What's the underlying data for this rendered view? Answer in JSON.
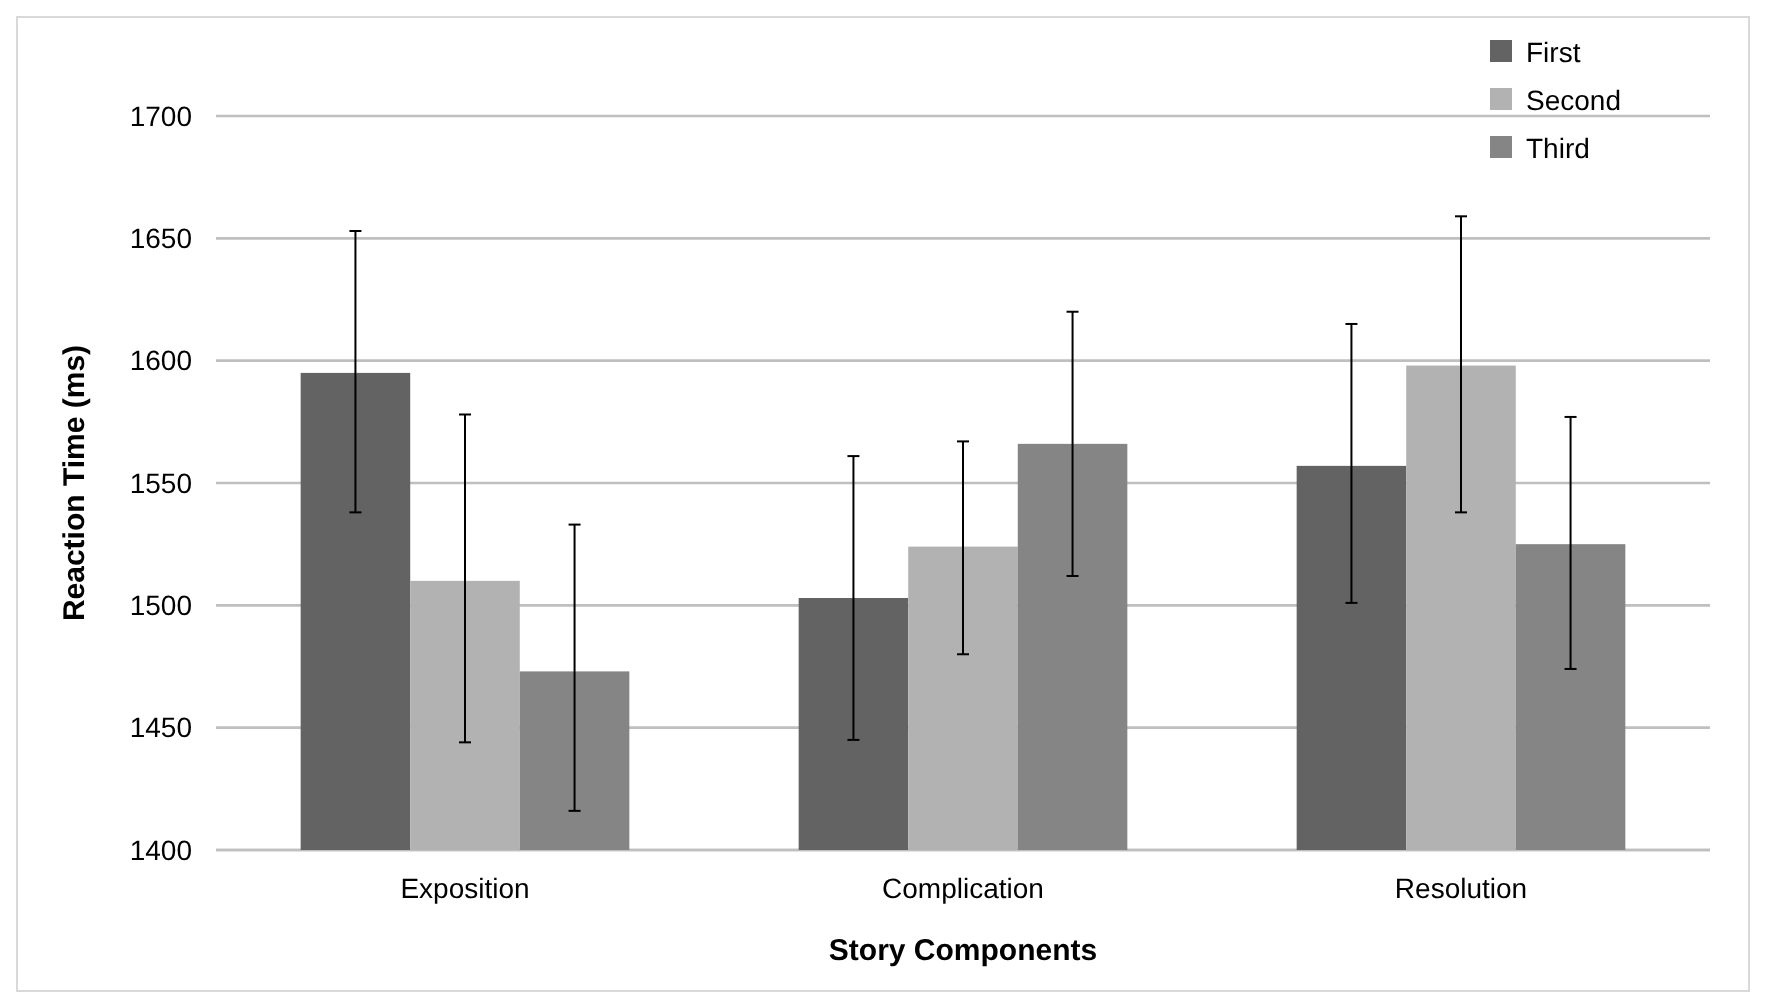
{
  "chart_data": {
    "type": "bar",
    "xlabel": "Story Components",
    "ylabel": "Reaction Time (ms)",
    "categories": [
      "Exposition",
      "Complication",
      "Resolution"
    ],
    "series": [
      {
        "name": "First",
        "color": "#636363",
        "values": [
          1595,
          1503,
          1557
        ],
        "errors": [
          [
            1538,
            1653
          ],
          [
            1445,
            1561
          ],
          [
            1501,
            1615
          ]
        ]
      },
      {
        "name": "Second",
        "color": "#b2b2b2",
        "values": [
          1510,
          1524,
          1598
        ],
        "errors": [
          [
            1444,
            1578
          ],
          [
            1480,
            1567
          ],
          [
            1538,
            1659
          ]
        ]
      },
      {
        "name": "Third",
        "color": "#858585",
        "values": [
          1473,
          1566,
          1525
        ],
        "errors": [
          [
            1416,
            1533
          ],
          [
            1512,
            1620
          ],
          [
            1474,
            1577
          ]
        ]
      }
    ],
    "ylim": [
      1400,
      1700
    ],
    "yticks": [
      1400,
      1450,
      1500,
      1550,
      1600,
      1650,
      1700
    ],
    "grid": "y",
    "legend": "top right"
  }
}
